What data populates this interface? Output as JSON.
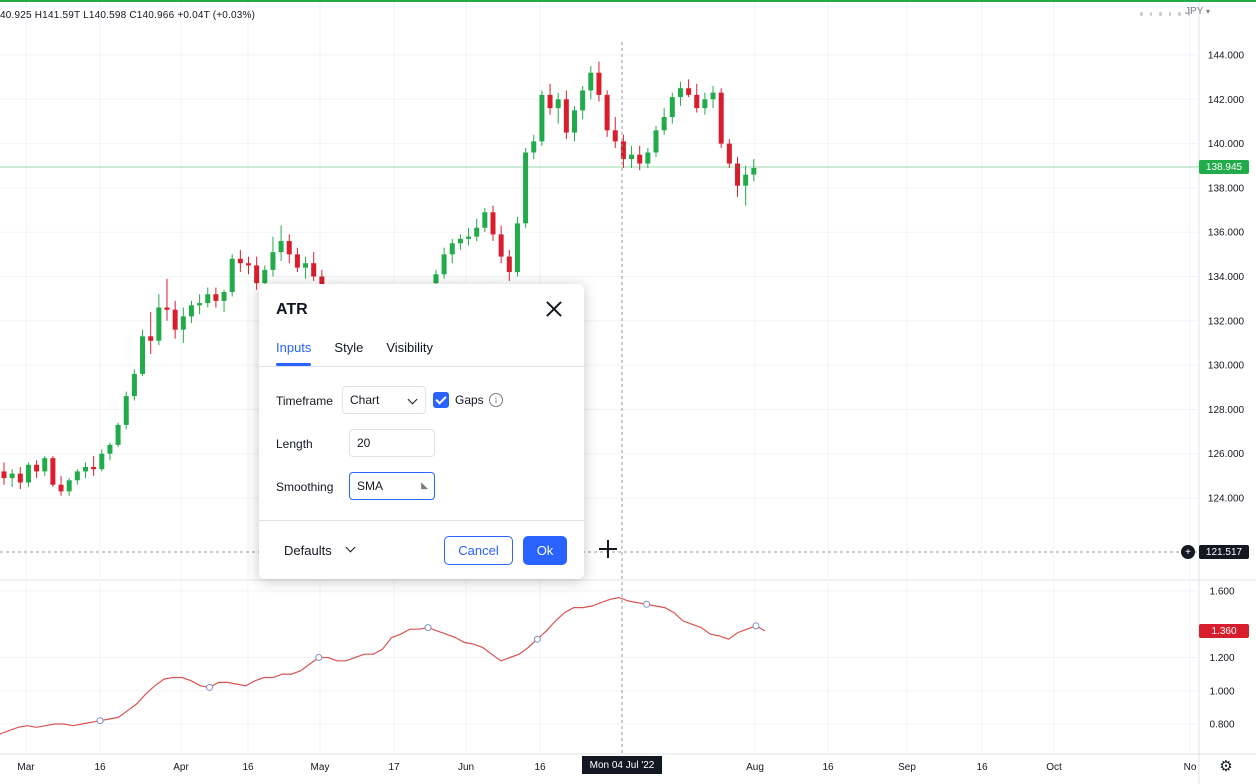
{
  "legend": {
    "ohlc": "40.925 H141.59T L140.598 C140.966 +0.04T (+0.03%)"
  },
  "currency": {
    "label": "JPY"
  },
  "colors": {
    "up": "#22ab4a",
    "down": "#d81e2c",
    "atr_line": "#d9534f",
    "accent": "#2962ff",
    "dark": "#131722"
  },
  "price_axis": {
    "labels": [
      "144.000",
      "142.000",
      "140.000",
      "138.000",
      "136.000",
      "134.000",
      "132.000",
      "130.000",
      "128.000",
      "126.000",
      "124.000"
    ]
  },
  "atr_axis": {
    "labels": [
      "1.600",
      "1.200",
      "1.000",
      "0.800"
    ]
  },
  "tags": {
    "last_price": "138.945",
    "cross_price": "121.517",
    "atr_value": "1.360",
    "cross_date": "Mon 04 Jul '22"
  },
  "time_axis": {
    "labels": [
      "Mar",
      "16",
      "Apr",
      "16",
      "May",
      "17",
      "Jun",
      "16",
      "Aug",
      "16",
      "Sep",
      "16",
      "Oct",
      "No"
    ]
  },
  "dialog": {
    "title": "ATR",
    "tabs": [
      "Inputs",
      "Style",
      "Visibility"
    ],
    "timeframe": {
      "label": "Timeframe",
      "value": "Chart"
    },
    "gaps": {
      "label": "Gaps",
      "checked": true
    },
    "length": {
      "label": "Length",
      "value": "20"
    },
    "smoothing": {
      "label": "Smoothing",
      "value": "SMA"
    },
    "defaults_label": "Defaults",
    "cancel_label": "Cancel",
    "ok_label": "Ok"
  },
  "chart_data": [
    {
      "type": "candlestick",
      "title": "",
      "y_range": [
        123,
        145
      ],
      "y_ticks": [
        124,
        126,
        128,
        130,
        132,
        134,
        136,
        138,
        140,
        142,
        144
      ],
      "x_labels": [
        "Mar",
        "16",
        "Apr",
        "16",
        "May",
        "17",
        "Jun",
        "16",
        "Aug",
        "16",
        "Sep",
        "16",
        "Oct",
        "No"
      ],
      "last_price": 138.945,
      "segments": [
        {
          "name": "mar-may",
          "start_index": 0,
          "candles": [
            [
              125.2,
              125.6,
              124.6,
              124.9
            ],
            [
              124.9,
              125.3,
              124.5,
              125.1
            ],
            [
              125.1,
              125.4,
              124.4,
              124.7
            ],
            [
              124.7,
              125.6,
              124.5,
              125.5
            ],
            [
              125.5,
              125.7,
              124.9,
              125.2
            ],
            [
              125.2,
              125.9,
              125.0,
              125.8
            ],
            [
              125.8,
              125.9,
              124.5,
              124.6
            ],
            [
              124.6,
              125.0,
              124.1,
              124.3
            ],
            [
              124.3,
              124.9,
              124.1,
              124.8
            ],
            [
              124.8,
              125.3,
              124.6,
              125.2
            ],
            [
              125.2,
              125.6,
              124.9,
              125.4
            ],
            [
              125.4,
              125.9,
              125.0,
              125.3
            ],
            [
              125.3,
              126.2,
              125.2,
              126.0
            ],
            [
              126.0,
              126.5,
              125.7,
              126.4
            ],
            [
              126.4,
              127.4,
              126.3,
              127.3
            ],
            [
              127.3,
              128.8,
              127.1,
              128.6
            ],
            [
              128.6,
              129.8,
              128.4,
              129.6
            ],
            [
              129.6,
              131.6,
              129.5,
              131.3
            ],
            [
              131.3,
              132.4,
              130.5,
              131.1
            ],
            [
              131.1,
              133.2,
              130.9,
              132.6
            ],
            [
              132.6,
              133.9,
              132.0,
              132.5
            ],
            [
              132.5,
              132.9,
              131.2,
              131.6
            ],
            [
              131.6,
              132.6,
              131.0,
              132.2
            ],
            [
              132.2,
              132.9,
              131.9,
              132.7
            ],
            [
              132.7,
              133.2,
              132.3,
              132.8
            ],
            [
              132.8,
              133.5,
              132.6,
              133.2
            ],
            [
              133.2,
              133.5,
              132.6,
              132.9
            ],
            [
              132.9,
              133.4,
              132.4,
              133.3
            ],
            [
              133.3,
              135.0,
              133.1,
              134.8
            ],
            [
              134.8,
              135.2,
              134.2,
              134.6
            ],
            [
              134.6,
              134.9,
              134.1,
              134.5
            ],
            [
              134.5,
              134.9,
              133.4,
              133.7
            ],
            [
              133.7,
              134.5,
              133.6,
              134.3
            ],
            [
              134.3,
              135.8,
              134.0,
              135.1
            ],
            [
              135.1,
              136.3,
              134.7,
              135.6
            ],
            [
              135.6,
              135.9,
              134.6,
              135.0
            ],
            [
              135.0,
              135.3,
              134.2,
              134.4
            ],
            [
              134.4,
              134.9,
              133.9,
              134.6
            ],
            [
              134.6,
              135.1,
              133.8,
              134.0
            ],
            [
              134.0,
              134.3,
              133.4,
              133.6
            ]
          ]
        },
        {
          "name": "jun-aug",
          "start_index": 53,
          "candles": [
            [
              133.7,
              134.3,
              133.4,
              134.1
            ],
            [
              134.1,
              135.3,
              133.9,
              135.0
            ],
            [
              135.0,
              135.7,
              134.6,
              135.5
            ],
            [
              135.5,
              135.9,
              135.2,
              135.7
            ],
            [
              135.7,
              136.2,
              135.4,
              135.8
            ],
            [
              135.8,
              136.6,
              135.6,
              136.2
            ],
            [
              136.2,
              137.1,
              136.0,
              136.9
            ],
            [
              136.9,
              137.2,
              135.6,
              135.9
            ],
            [
              135.9,
              136.3,
              134.6,
              134.9
            ],
            [
              134.9,
              135.2,
              133.8,
              134.2
            ],
            [
              134.2,
              136.7,
              134.0,
              136.4
            ],
            [
              136.4,
              139.8,
              136.2,
              139.6
            ],
            [
              139.6,
              140.4,
              139.3,
              140.1
            ],
            [
              140.1,
              142.4,
              139.9,
              142.2
            ],
            [
              142.2,
              142.7,
              141.3,
              141.6
            ],
            [
              141.6,
              142.3,
              140.9,
              142.0
            ],
            [
              142.0,
              142.4,
              140.2,
              140.5
            ],
            [
              140.5,
              141.7,
              140.1,
              141.5
            ],
            [
              141.5,
              142.6,
              141.1,
              142.4
            ],
            [
              142.4,
              143.5,
              142.0,
              143.2
            ],
            [
              143.2,
              143.7,
              141.9,
              142.2
            ],
            [
              142.2,
              142.4,
              140.3,
              140.6
            ],
            [
              140.6,
              141.2,
              139.8,
              140.1
            ],
            [
              140.1,
              140.4,
              138.9,
              139.3
            ],
            [
              139.3,
              139.9,
              138.9,
              139.5
            ],
            [
              139.5,
              139.9,
              138.8,
              139.1
            ],
            [
              139.1,
              139.8,
              138.9,
              139.6
            ],
            [
              139.6,
              140.8,
              139.4,
              140.6
            ],
            [
              140.6,
              141.6,
              140.4,
              141.2
            ],
            [
              141.2,
              142.3,
              140.9,
              142.1
            ],
            [
              142.1,
              142.8,
              141.7,
              142.5
            ],
            [
              142.5,
              142.9,
              142.1,
              142.2
            ],
            [
              142.2,
              142.7,
              141.4,
              141.6
            ],
            [
              141.6,
              142.3,
              141.3,
              142.0
            ],
            [
              142.0,
              142.6,
              141.6,
              142.3
            ],
            [
              142.3,
              142.5,
              139.8,
              140.0
            ],
            [
              140.0,
              140.2,
              138.9,
              139.1
            ],
            [
              139.1,
              139.4,
              137.6,
              138.1
            ],
            [
              138.1,
              139.0,
              137.2,
              138.6
            ],
            [
              138.6,
              139.3,
              138.3,
              138.9
            ]
          ]
        }
      ]
    },
    {
      "type": "line",
      "title": "ATR",
      "y_range": [
        0.72,
        1.72
      ],
      "y_ticks": [
        0.8,
        1.0,
        1.2,
        1.6
      ],
      "last_value": 1.36,
      "values": [
        0.74,
        0.76,
        0.78,
        0.79,
        0.78,
        0.79,
        0.8,
        0.8,
        0.79,
        0.8,
        0.81,
        0.82,
        0.83,
        0.84,
        0.88,
        0.92,
        0.98,
        1.03,
        1.07,
        1.08,
        1.08,
        1.06,
        1.03,
        1.02,
        1.05,
        1.05,
        1.04,
        1.03,
        1.06,
        1.08,
        1.08,
        1.1,
        1.1,
        1.12,
        1.16,
        1.2,
        1.2,
        1.18,
        1.18,
        1.2,
        1.22,
        1.22,
        1.25,
        1.32,
        1.34,
        1.37,
        1.37,
        1.38,
        1.36,
        1.34,
        1.32,
        1.29,
        1.28,
        1.26,
        1.22,
        1.18,
        1.2,
        1.22,
        1.26,
        1.31,
        1.36,
        1.42,
        1.47,
        1.5,
        1.5,
        1.51,
        1.53,
        1.55,
        1.56,
        1.54,
        1.53,
        1.52,
        1.51,
        1.5,
        1.47,
        1.42,
        1.4,
        1.38,
        1.34,
        1.33,
        1.31,
        1.35,
        1.37,
        1.39,
        1.36
      ]
    }
  ]
}
